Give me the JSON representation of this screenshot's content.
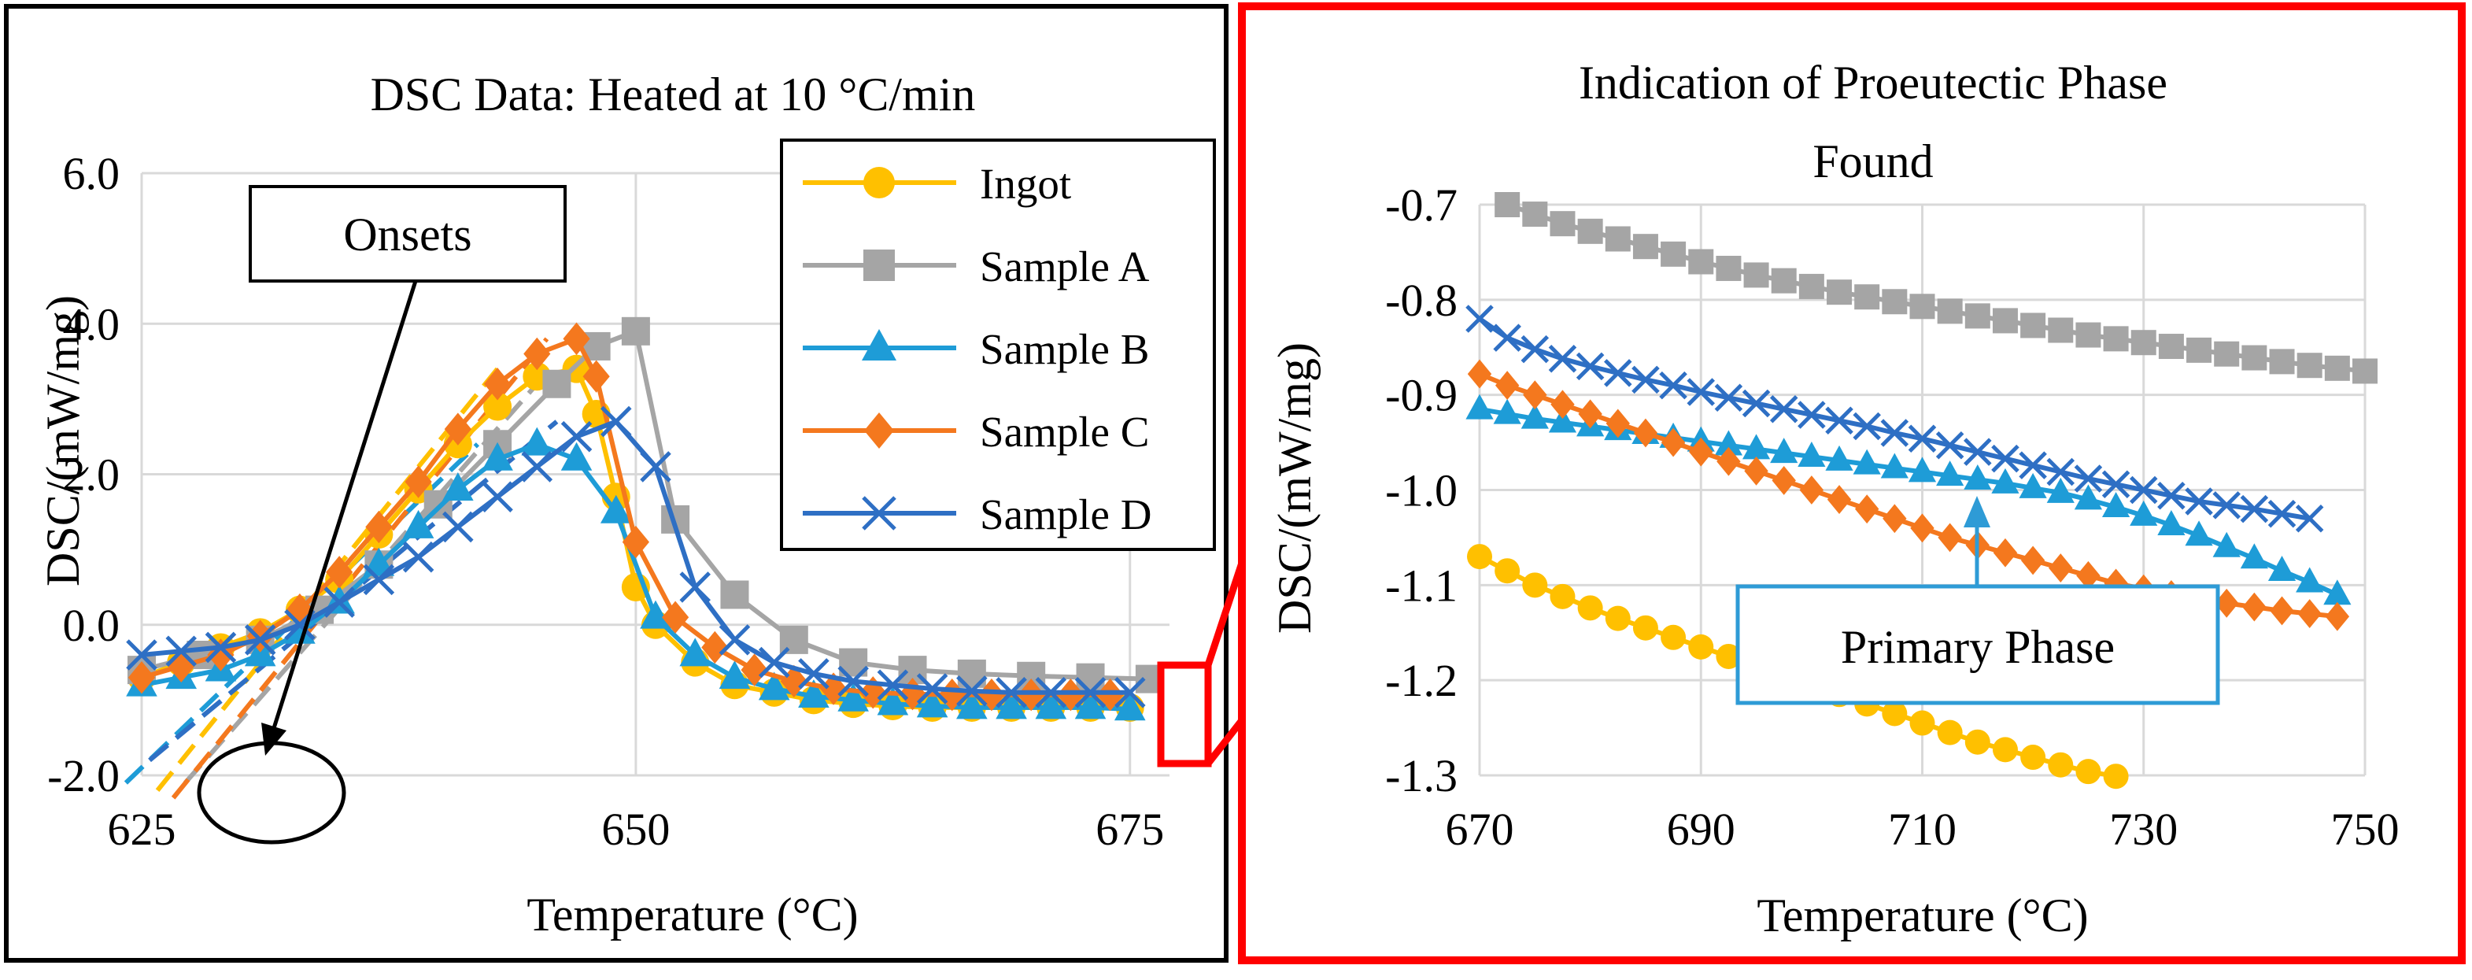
{
  "colors": {
    "ingot": "#FFC000",
    "sample_a": "#A5A5A5",
    "sample_b": "#1E9CD7",
    "sample_c": "#F4781E",
    "sample_d": "#2E6FC4",
    "left_frame": "#000000",
    "right_frame": "#FF0000",
    "callout": "#2E9BD6",
    "grid": "#D9D9D9"
  },
  "chart_data": [
    {
      "type": "line",
      "title": "DSC Data: Heated at 10 °C/min",
      "xlabel": "Temperature (°C)",
      "ylabel": "DSC/(mW/mg)",
      "xlim": [
        625,
        677
      ],
      "ylim": [
        -2.0,
        6.0
      ],
      "xticks": [
        625,
        650,
        675
      ],
      "yticks": [
        -2.0,
        0.0,
        2.0,
        4.0,
        6.0
      ],
      "ytick_labels": [
        "-2.0",
        "0.0",
        "2.0",
        "4.0",
        "6.0"
      ],
      "grid": true,
      "legend_position": "top-right",
      "legend": [
        "Ingot",
        "Sample A",
        "Sample B",
        "Sample C",
        "Sample D"
      ],
      "annotations": [
        "Onsets"
      ],
      "series": [
        {
          "name": "Ingot",
          "marker": "circle",
          "x": [
            625,
            627,
            629,
            631,
            633,
            635,
            637,
            639,
            641,
            643,
            645,
            647,
            648,
            649,
            650,
            651,
            653,
            655,
            657,
            659,
            661,
            663,
            665,
            667,
            669,
            671,
            673,
            675
          ],
          "y": [
            -0.7,
            -0.5,
            -0.3,
            -0.1,
            0.2,
            0.6,
            1.2,
            1.8,
            2.4,
            2.9,
            3.3,
            3.4,
            2.8,
            1.7,
            0.5,
            0.0,
            -0.5,
            -0.8,
            -0.9,
            -1.0,
            -1.05,
            -1.08,
            -1.1,
            -1.1,
            -1.1,
            -1.1,
            -1.1,
            -1.1
          ]
        },
        {
          "name": "Sample A",
          "marker": "square",
          "x": [
            625,
            628,
            631,
            634,
            637,
            640,
            643,
            646,
            648,
            650,
            652,
            655,
            658,
            661,
            664,
            667,
            670,
            673,
            676
          ],
          "y": [
            -0.6,
            -0.4,
            -0.2,
            0.2,
            0.8,
            1.6,
            2.4,
            3.2,
            3.7,
            3.9,
            1.4,
            0.4,
            -0.2,
            -0.5,
            -0.6,
            -0.65,
            -0.68,
            -0.7,
            -0.72
          ]
        },
        {
          "name": "Sample B",
          "marker": "triangle",
          "x": [
            625,
            627,
            629,
            631,
            633,
            635,
            637,
            639,
            641,
            643,
            645,
            647,
            649,
            651,
            653,
            655,
            657,
            659,
            661,
            663,
            665,
            667,
            669,
            671,
            673,
            675
          ],
          "y": [
            -0.8,
            -0.7,
            -0.6,
            -0.4,
            -0.1,
            0.3,
            0.8,
            1.3,
            1.8,
            2.2,
            2.4,
            2.2,
            1.5,
            0.1,
            -0.4,
            -0.7,
            -0.85,
            -0.95,
            -1.0,
            -1.05,
            -1.08,
            -1.1,
            -1.1,
            -1.1,
            -1.1,
            -1.12
          ]
        },
        {
          "name": "Sample C",
          "marker": "diamond",
          "x": [
            625,
            627,
            629,
            631,
            633,
            635,
            637,
            639,
            641,
            643,
            645,
            647,
            648,
            650,
            652,
            654,
            656,
            658,
            660,
            662,
            664,
            666,
            668,
            670,
            672,
            674
          ],
          "y": [
            -0.7,
            -0.55,
            -0.4,
            -0.15,
            0.2,
            0.7,
            1.3,
            1.9,
            2.6,
            3.2,
            3.6,
            3.8,
            3.3,
            1.1,
            0.1,
            -0.3,
            -0.6,
            -0.75,
            -0.85,
            -0.9,
            -0.92,
            -0.93,
            -0.93,
            -0.93,
            -0.93,
            -0.93
          ]
        },
        {
          "name": "Sample D",
          "marker": "x",
          "x": [
            625,
            627,
            629,
            631,
            633,
            635,
            637,
            639,
            641,
            643,
            645,
            647,
            649,
            651,
            653,
            655,
            657,
            659,
            661,
            663,
            665,
            667,
            669,
            671,
            673,
            675
          ],
          "y": [
            -0.4,
            -0.35,
            -0.3,
            -0.2,
            0.0,
            0.3,
            0.6,
            0.9,
            1.3,
            1.7,
            2.1,
            2.5,
            2.7,
            2.1,
            0.5,
            -0.2,
            -0.5,
            -0.65,
            -0.75,
            -0.8,
            -0.85,
            -0.88,
            -0.9,
            -0.9,
            -0.9,
            -0.9
          ]
        }
      ],
      "onset_lines": [
        {
          "series": "Ingot",
          "x": [
            625.8,
            643.0
          ],
          "y": [
            -2.2,
            3.4
          ]
        },
        {
          "series": "Sample A",
          "x": [
            627.2,
            645.0
          ],
          "y": [
            -2.1,
            3.2
          ]
        },
        {
          "series": "Sample B",
          "x": [
            624.2,
            642.0
          ],
          "y": [
            -2.1,
            2.4
          ]
        },
        {
          "series": "Sample C",
          "x": [
            626.6,
            645.5
          ],
          "y": [
            -2.3,
            3.8
          ]
        },
        {
          "series": "Sample D",
          "x": [
            625.4,
            646.0
          ],
          "y": [
            -1.8,
            2.7
          ]
        }
      ]
    },
    {
      "type": "line",
      "title": "Indication of Proeutectic Phase Found",
      "xlabel": "Temperature (°C)",
      "ylabel": "DSC/(mW/mg)",
      "xlim": [
        670,
        750
      ],
      "ylim": [
        -1.3,
        -0.7
      ],
      "xticks": [
        670,
        690,
        710,
        730,
        750
      ],
      "yticks": [
        -1.3,
        -1.2,
        -1.1,
        -1.0,
        -0.9,
        -0.8,
        -0.7
      ],
      "ytick_labels": [
        "-1.3",
        "-1.2",
        "-1.1",
        "-1.0",
        "-0.9",
        "-0.8",
        "-0.7"
      ],
      "grid": true,
      "annotations": [
        "Primary Phase"
      ],
      "series": [
        {
          "name": "Ingot",
          "marker": "circle",
          "x": [
            670,
            672.5,
            675,
            677.5,
            680,
            682.5,
            685,
            687.5,
            690,
            692.5,
            695,
            697.5,
            700,
            702.5,
            705,
            707.5,
            710,
            712.5,
            715,
            717.5,
            720,
            722.5,
            725,
            727.5
          ],
          "y": [
            -1.07,
            -1.085,
            -1.1,
            -1.112,
            -1.124,
            -1.135,
            -1.145,
            -1.155,
            -1.165,
            -1.175,
            -1.185,
            -1.195,
            -1.205,
            -1.215,
            -1.225,
            -1.235,
            -1.245,
            -1.255,
            -1.265,
            -1.273,
            -1.281,
            -1.289,
            -1.296,
            -1.301
          ]
        },
        {
          "name": "Sample A",
          "marker": "square",
          "x": [
            672.5,
            675,
            677.5,
            680,
            682.5,
            685,
            687.5,
            690,
            692.5,
            695,
            697.5,
            700,
            702.5,
            705,
            707.5,
            710,
            712.5,
            715,
            717.5,
            720,
            722.5,
            725,
            727.5,
            730,
            732.5,
            735,
            737.5,
            740,
            742.5,
            745,
            747.5,
            750
          ],
          "y": [
            -0.7,
            -0.71,
            -0.72,
            -0.728,
            -0.736,
            -0.744,
            -0.752,
            -0.76,
            -0.767,
            -0.774,
            -0.78,
            -0.786,
            -0.792,
            -0.797,
            -0.802,
            -0.807,
            -0.812,
            -0.817,
            -0.822,
            -0.827,
            -0.832,
            -0.837,
            -0.841,
            -0.845,
            -0.849,
            -0.853,
            -0.857,
            -0.861,
            -0.865,
            -0.869,
            -0.872,
            -0.875
          ]
        },
        {
          "name": "Sample B",
          "marker": "triangle",
          "x": [
            670,
            672.5,
            675,
            677.5,
            680,
            682.5,
            685,
            687.5,
            690,
            692.5,
            695,
            697.5,
            700,
            702.5,
            705,
            707.5,
            710,
            712.5,
            715,
            717.5,
            720,
            722.5,
            725,
            727.5,
            730,
            732.5,
            735,
            737.5,
            740,
            742.5,
            745,
            747.5
          ],
          "y": [
            -0.915,
            -0.92,
            -0.925,
            -0.929,
            -0.933,
            -0.937,
            -0.941,
            -0.945,
            -0.949,
            -0.953,
            -0.957,
            -0.961,
            -0.965,
            -0.969,
            -0.973,
            -0.977,
            -0.981,
            -0.985,
            -0.989,
            -0.993,
            -0.998,
            -1.003,
            -1.01,
            -1.018,
            -1.027,
            -1.037,
            -1.048,
            -1.06,
            -1.072,
            -1.085,
            -1.097,
            -1.11
          ]
        },
        {
          "name": "Sample C",
          "marker": "diamond",
          "x": [
            670,
            672.5,
            675,
            677.5,
            680,
            682.5,
            685,
            687.5,
            690,
            692.5,
            695,
            697.5,
            700,
            702.5,
            705,
            707.5,
            710,
            712.5,
            715,
            717.5,
            720,
            722.5,
            725,
            727.5,
            730,
            732.5,
            735,
            737.5,
            740,
            742.5,
            745,
            747.5
          ],
          "y": [
            -0.878,
            -0.89,
            -0.9,
            -0.91,
            -0.92,
            -0.93,
            -0.94,
            -0.95,
            -0.96,
            -0.97,
            -0.98,
            -0.99,
            -1.0,
            -1.01,
            -1.02,
            -1.03,
            -1.04,
            -1.05,
            -1.058,
            -1.066,
            -1.074,
            -1.082,
            -1.09,
            -1.098,
            -1.104,
            -1.11,
            -1.115,
            -1.119,
            -1.123,
            -1.127,
            -1.13,
            -1.133
          ]
        },
        {
          "name": "Sample D",
          "marker": "x",
          "x": [
            670,
            672.5,
            675,
            677.5,
            680,
            682.5,
            685,
            687.5,
            690,
            692.5,
            695,
            697.5,
            700,
            702.5,
            705,
            707.5,
            710,
            712.5,
            715,
            717.5,
            720,
            722.5,
            725,
            727.5,
            730,
            732.5,
            735,
            737.5,
            740,
            742.5,
            745
          ],
          "y": [
            -0.82,
            -0.84,
            -0.852,
            -0.862,
            -0.87,
            -0.877,
            -0.884,
            -0.89,
            -0.897,
            -0.903,
            -0.909,
            -0.915,
            -0.921,
            -0.927,
            -0.933,
            -0.94,
            -0.946,
            -0.953,
            -0.96,
            -0.967,
            -0.974,
            -0.981,
            -0.988,
            -0.994,
            -1.0,
            -1.006,
            -1.012,
            -1.016,
            -1.02,
            -1.025,
            -1.03
          ]
        }
      ]
    }
  ]
}
